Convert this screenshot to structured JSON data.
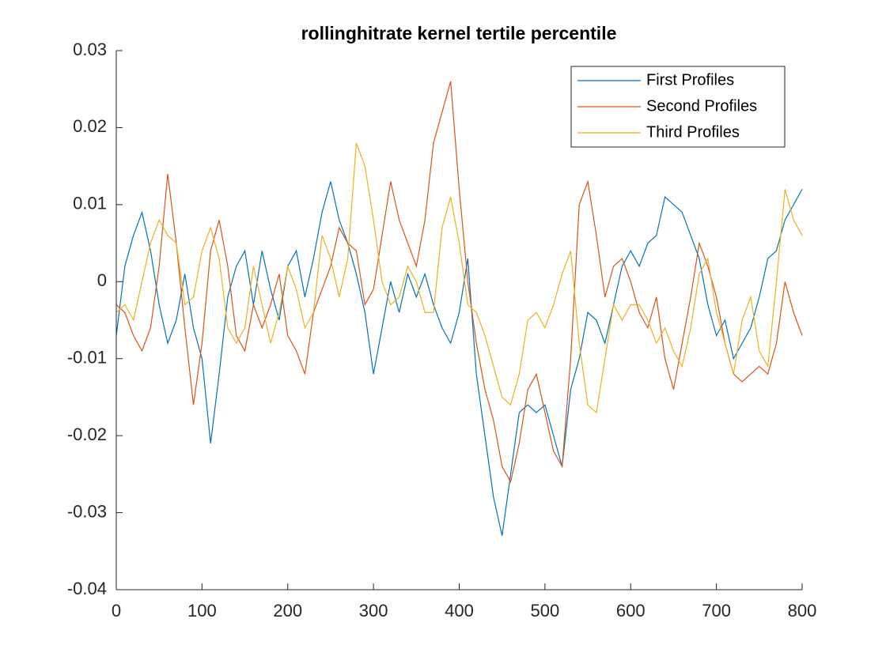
{
  "chart_data": {
    "type": "line",
    "title": "rollinghitrate kernel tertile percentile",
    "x": [
      0,
      10,
      20,
      30,
      40,
      50,
      60,
      70,
      80,
      90,
      100,
      110,
      120,
      130,
      140,
      150,
      160,
      170,
      180,
      190,
      200,
      210,
      220,
      230,
      240,
      250,
      260,
      270,
      280,
      290,
      300,
      310,
      320,
      330,
      340,
      350,
      360,
      370,
      380,
      390,
      400,
      410,
      420,
      430,
      440,
      450,
      460,
      470,
      480,
      490,
      500,
      510,
      520,
      530,
      540,
      550,
      560,
      570,
      580,
      590,
      600,
      610,
      620,
      630,
      640,
      650,
      660,
      670,
      680,
      690,
      700,
      710,
      720,
      730,
      740,
      750,
      760,
      770,
      780,
      790,
      800
    ],
    "series": [
      {
        "name": "First Profiles",
        "color": "#0072BD",
        "values": [
          -0.007,
          0.002,
          0.006,
          0.009,
          0.004,
          -0.003,
          -0.008,
          -0.005,
          0.001,
          -0.006,
          -0.01,
          -0.021,
          -0.012,
          -0.002,
          0.002,
          0.004,
          -0.003,
          0.004,
          -0.001,
          -0.005,
          0.002,
          0.004,
          -0.002,
          0.003,
          0.009,
          0.013,
          0.008,
          0.005,
          0.001,
          -0.004,
          -0.012,
          -0.006,
          0.0,
          -0.004,
          0.001,
          -0.002,
          0.001,
          -0.003,
          -0.006,
          -0.008,
          -0.004,
          0.003,
          -0.012,
          -0.02,
          -0.028,
          -0.033,
          -0.025,
          -0.017,
          -0.016,
          -0.017,
          -0.016,
          -0.02,
          -0.024,
          -0.014,
          -0.01,
          -0.004,
          -0.005,
          -0.008,
          -0.003,
          0.002,
          0.004,
          0.002,
          0.005,
          0.006,
          0.011,
          0.01,
          0.009,
          0.006,
          0.003,
          -0.003,
          -0.007,
          -0.005,
          -0.01,
          -0.008,
          -0.006,
          -0.002,
          0.003,
          0.004,
          0.008,
          0.01,
          0.012
        ]
      },
      {
        "name": "Second Profiles",
        "color": "#D95319",
        "values": [
          -0.003,
          -0.004,
          -0.007,
          -0.009,
          -0.006,
          0.002,
          0.014,
          0.005,
          -0.006,
          -0.016,
          -0.008,
          0.004,
          0.008,
          0.002,
          -0.007,
          -0.009,
          -0.003,
          -0.006,
          -0.003,
          0.001,
          -0.007,
          -0.009,
          -0.012,
          -0.004,
          -0.001,
          0.002,
          0.007,
          0.005,
          0.004,
          -0.003,
          -0.001,
          0.006,
          0.013,
          0.008,
          0.005,
          0.002,
          0.008,
          0.018,
          0.022,
          0.026,
          0.012,
          0.0,
          -0.008,
          -0.014,
          -0.018,
          -0.024,
          -0.026,
          -0.021,
          -0.014,
          -0.012,
          -0.017,
          -0.022,
          -0.024,
          -0.01,
          0.01,
          0.013,
          0.006,
          -0.002,
          0.002,
          0.003,
          0.0,
          -0.004,
          -0.006,
          -0.002,
          -0.01,
          -0.014,
          -0.008,
          -0.002,
          0.005,
          0.002,
          -0.002,
          -0.008,
          -0.012,
          -0.013,
          -0.012,
          -0.011,
          -0.012,
          -0.008,
          0.0,
          -0.004,
          -0.007
        ]
      },
      {
        "name": "Third Profiles",
        "color": "#EDB120",
        "values": [
          -0.004,
          -0.003,
          -0.005,
          0.0,
          0.005,
          0.008,
          0.006,
          0.005,
          -0.003,
          -0.002,
          0.004,
          0.007,
          0.003,
          -0.006,
          -0.008,
          -0.006,
          0.002,
          -0.003,
          -0.008,
          -0.004,
          0.002,
          -0.001,
          -0.006,
          -0.004,
          0.006,
          0.003,
          -0.002,
          0.003,
          0.018,
          0.015,
          0.008,
          0.0,
          -0.003,
          -0.002,
          0.002,
          0.0,
          -0.004,
          -0.004,
          0.007,
          0.011,
          0.005,
          -0.003,
          -0.004,
          -0.007,
          -0.011,
          -0.015,
          -0.016,
          -0.012,
          -0.005,
          -0.004,
          -0.006,
          -0.003,
          0.001,
          0.004,
          -0.008,
          -0.016,
          -0.017,
          -0.01,
          -0.003,
          -0.005,
          -0.003,
          -0.003,
          -0.005,
          -0.008,
          -0.006,
          -0.009,
          -0.011,
          -0.006,
          0.001,
          0.003,
          -0.004,
          -0.008,
          -0.012,
          -0.005,
          -0.002,
          -0.009,
          -0.011,
          0.0,
          0.012,
          0.008,
          0.006
        ]
      }
    ],
    "xlim": [
      0,
      800
    ],
    "xticks": [
      0,
      100,
      200,
      300,
      400,
      500,
      600,
      700,
      800
    ],
    "ylim": [
      -0.04,
      0.03
    ],
    "yticks": [
      -0.04,
      -0.03,
      -0.02,
      -0.01,
      0,
      0.01,
      0.02,
      0.03
    ],
    "legend": "top-right"
  }
}
